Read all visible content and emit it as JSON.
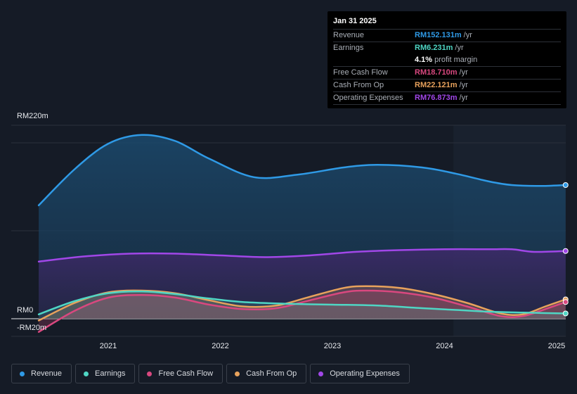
{
  "tooltip": {
    "date": "Jan 31 2025",
    "rows": [
      {
        "label": "Revenue",
        "value": "RM152.131m",
        "unit": "/yr",
        "color": "#2f9ae6"
      },
      {
        "label": "Earnings",
        "value": "RM6.231m",
        "unit": "/yr",
        "color": "#4fd6c4"
      },
      {
        "label": "Free Cash Flow",
        "value": "RM18.710m",
        "unit": "/yr",
        "color": "#d9487f"
      },
      {
        "label": "Cash From Op",
        "value": "RM22.121m",
        "unit": "/yr",
        "color": "#e8a25c"
      },
      {
        "label": "Operating Expenses",
        "value": "RM76.873m",
        "unit": "/yr",
        "color": "#a147e8"
      }
    ],
    "margin_value": "4.1%",
    "margin_text": "profit margin"
  },
  "y_labels": {
    "top": "RM220m",
    "zero": "RM0",
    "neg": "-RM20m"
  },
  "legend": [
    {
      "label": "Revenue",
      "color": "#2f9ae6"
    },
    {
      "label": "Earnings",
      "color": "#4fd6c4"
    },
    {
      "label": "Free Cash Flow",
      "color": "#d9487f"
    },
    {
      "label": "Cash From Op",
      "color": "#e8a25c"
    },
    {
      "label": "Operating Expenses",
      "color": "#a147e8"
    }
  ],
  "chart_data": {
    "type": "area",
    "title": "",
    "xlabel": "",
    "ylabel": "",
    "ylim": [
      -20,
      220
    ],
    "x_ticks": [
      "2021",
      "2022",
      "2023",
      "2024",
      "2025"
    ],
    "x_tick_values": [
      2021.0,
      2022.0,
      2023.0,
      2024.0,
      2025.0
    ],
    "x_range": [
      2020.4,
      2025.1
    ],
    "highlight_from": 2024.08,
    "series": [
      {
        "name": "Revenue",
        "color": "#2f9ae6",
        "x": [
          2020.38,
          2020.7,
          2021.0,
          2021.3,
          2021.6,
          2021.9,
          2022.3,
          2022.7,
          2023.1,
          2023.4,
          2023.8,
          2024.1,
          2024.4,
          2024.6,
          2024.85,
          2025.08
        ],
        "values": [
          129,
          170,
          199,
          209,
          202,
          182,
          161,
          164,
          172,
          175,
          172,
          165,
          156,
          152,
          151,
          152
        ]
      },
      {
        "name": "Operating Expenses",
        "color": "#a147e8",
        "x": [
          2020.38,
          2020.8,
          2021.2,
          2021.6,
          2022.0,
          2022.4,
          2022.8,
          2023.2,
          2023.6,
          2024.0,
          2024.4,
          2024.6,
          2024.8,
          2025.08
        ],
        "values": [
          65,
          71,
          74,
          74,
          72,
          70,
          72,
          76,
          78,
          79,
          79,
          79,
          76,
          77
        ]
      },
      {
        "name": "Cash From Op",
        "color": "#e8a25c",
        "x": [
          2020.38,
          2020.7,
          2021.0,
          2021.3,
          2021.6,
          2021.9,
          2022.2,
          2022.5,
          2022.8,
          2023.1,
          2023.3,
          2023.6,
          2023.9,
          2024.2,
          2024.5,
          2024.7,
          2024.9,
          2025.08
        ],
        "values": [
          -2,
          18,
          30,
          32,
          29,
          21,
          14,
          15,
          25,
          35,
          37,
          35,
          28,
          18,
          6,
          5,
          14,
          22
        ]
      },
      {
        "name": "Free Cash Flow",
        "color": "#d9487f",
        "x": [
          2020.38,
          2020.7,
          2021.0,
          2021.3,
          2021.6,
          2021.9,
          2022.2,
          2022.5,
          2022.8,
          2023.1,
          2023.3,
          2023.6,
          2023.9,
          2024.2,
          2024.5,
          2024.7,
          2024.9,
          2025.08
        ],
        "values": [
          -15,
          9,
          24,
          27,
          24,
          16,
          11,
          12,
          21,
          30,
          32,
          30,
          24,
          14,
          3,
          3,
          11,
          19
        ]
      },
      {
        "name": "Earnings",
        "color": "#4fd6c4",
        "x": [
          2020.38,
          2020.7,
          2021.0,
          2021.3,
          2021.6,
          2021.9,
          2022.2,
          2022.6,
          2023.0,
          2023.4,
          2023.8,
          2024.1,
          2024.4,
          2024.7,
          2025.08
        ],
        "values": [
          5,
          20,
          29,
          31,
          28,
          23,
          19,
          17,
          16,
          15,
          12,
          10,
          8,
          7,
          6
        ]
      }
    ]
  }
}
